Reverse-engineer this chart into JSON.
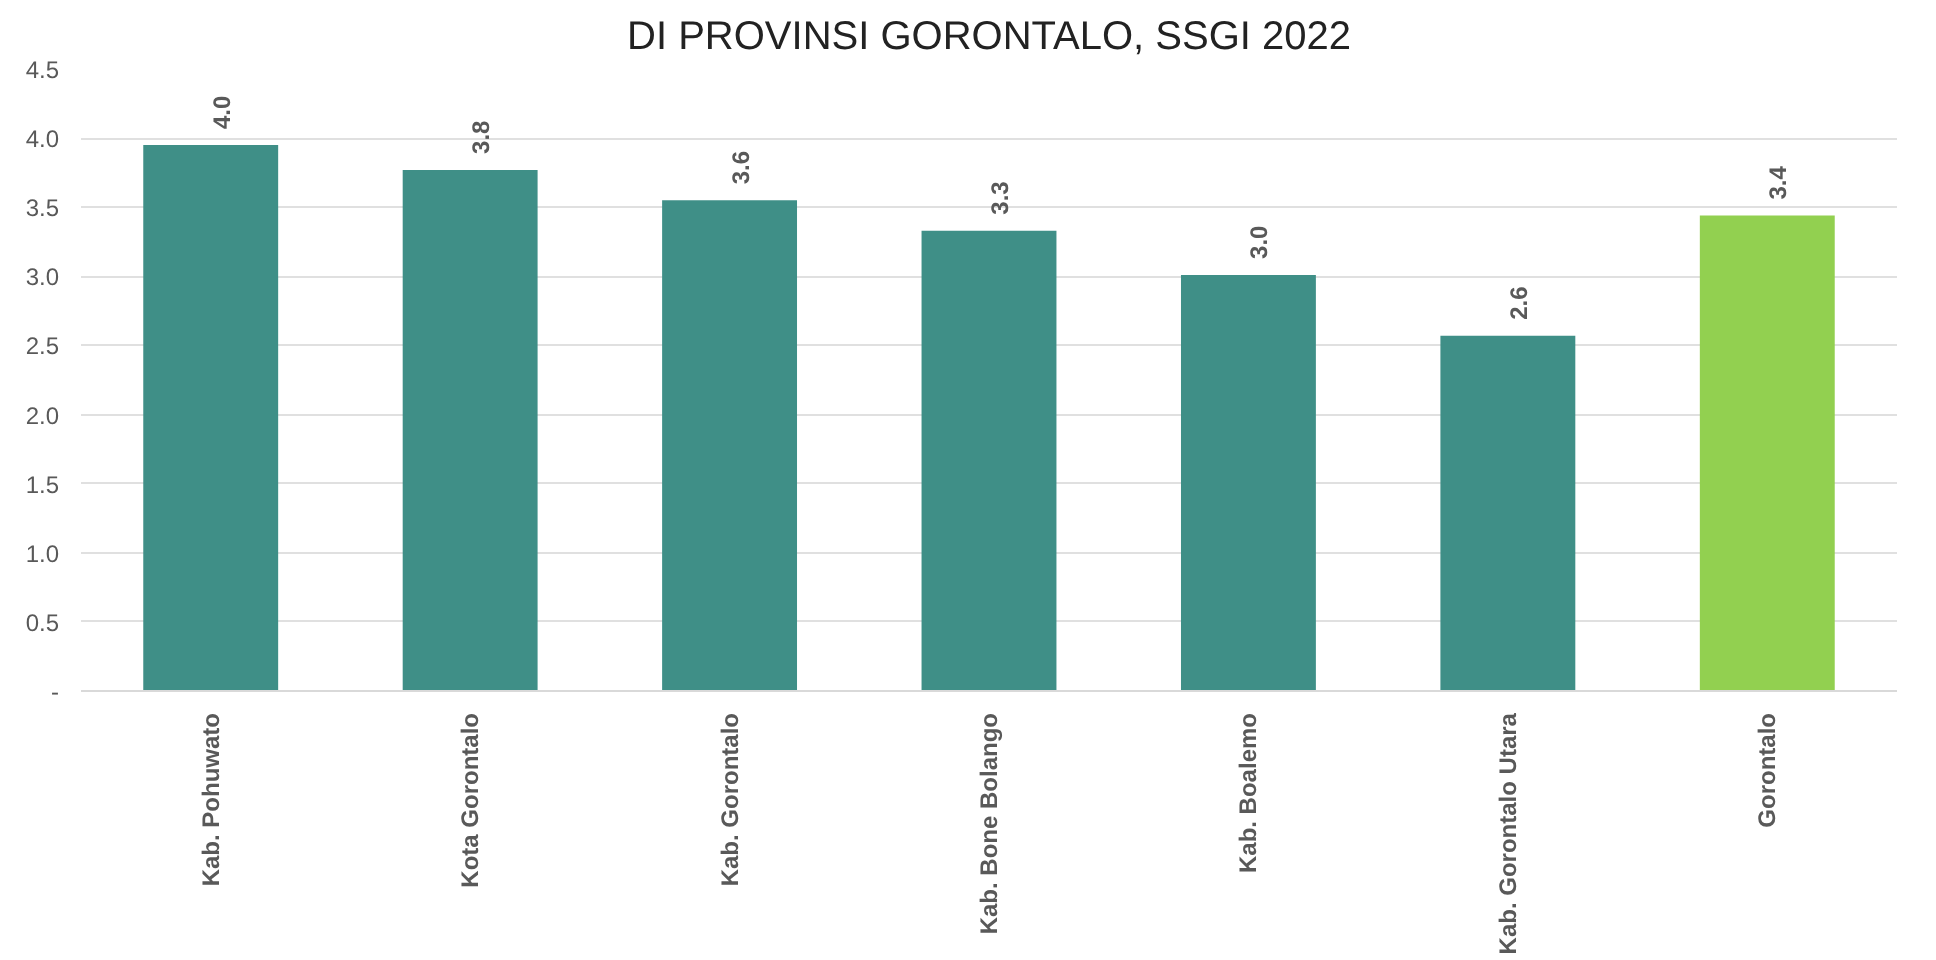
{
  "chart_data": {
    "type": "bar",
    "title": "DI PROVINSI GORONTALO, SSGI 2022",
    "categories": [
      "Kab. Pohuwato",
      "Kota Gorontalo",
      "Kab. Gorontalo",
      "Kab. Bone Bolango",
      "Kab. Boalemo",
      "Kab. Gorontalo Utara",
      "Gorontalo"
    ],
    "values": [
      3.95,
      3.77,
      3.55,
      3.33,
      3.01,
      2.57,
      3.44
    ],
    "value_labels": [
      "4.0",
      "3.8",
      "3.6",
      "3.3",
      "3.0",
      "2.6",
      "3.4"
    ],
    "colors": [
      "#3f8f87",
      "#3f8f87",
      "#3f8f87",
      "#3f8f87",
      "#3f8f87",
      "#3f8f87",
      "#92d050"
    ],
    "ylim": [
      0,
      4.5
    ],
    "yticks": [
      {
        "value": 0,
        "label": "-"
      },
      {
        "value": 0.5,
        "label": "0.5"
      },
      {
        "value": 1,
        "label": "1.0"
      },
      {
        "value": 1.5,
        "label": "1.5"
      },
      {
        "value": 2,
        "label": "2.0"
      },
      {
        "value": 2.5,
        "label": "2.5"
      },
      {
        "value": 3,
        "label": "3.0"
      },
      {
        "value": 3.5,
        "label": "3.5"
      },
      {
        "value": 4,
        "label": "4.0"
      },
      {
        "value": 4.5,
        "label": "4.5"
      }
    ],
    "grid": "y"
  }
}
